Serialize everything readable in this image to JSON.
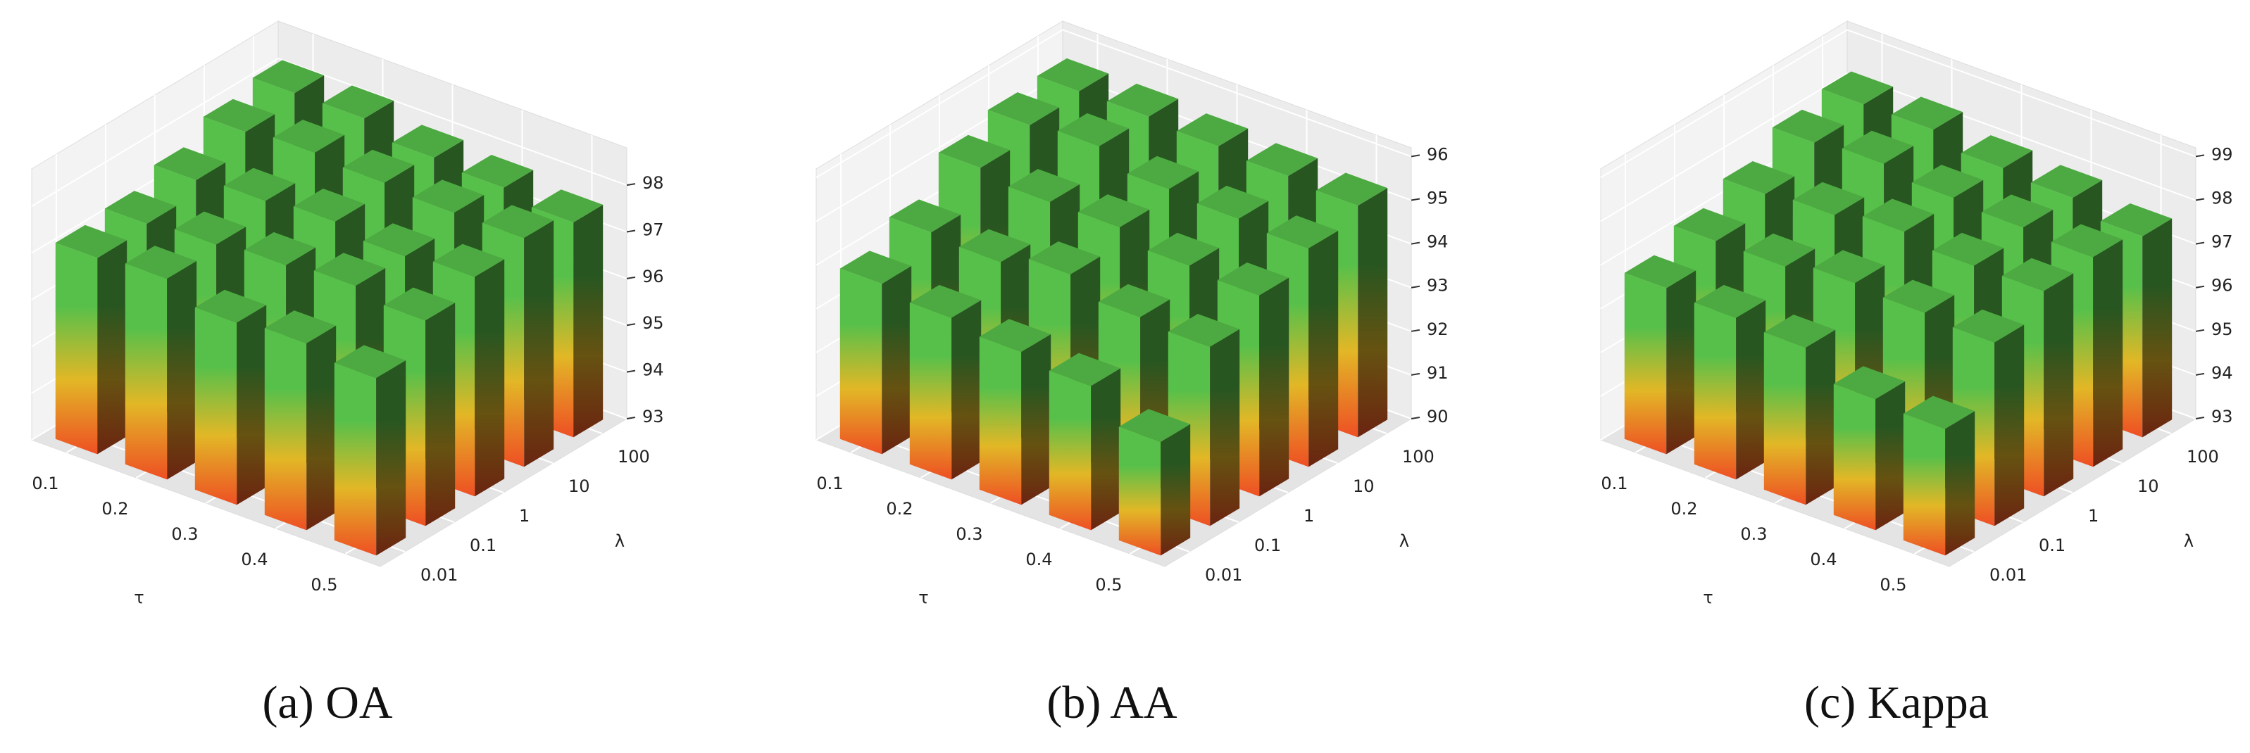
{
  "chart_data": [
    {
      "type": "bar3d",
      "title": "(a) OA",
      "xlabel": "τ",
      "ylabel": "λ",
      "x": [
        "0.1",
        "0.2",
        "0.3",
        "0.4",
        "0.5"
      ],
      "y": [
        "0.01",
        "0.1",
        "1",
        "10",
        "100"
      ],
      "values": [
        [
          97.2,
          97.3,
          97.6,
          98.0,
          98.2
        ],
        [
          97.3,
          97.4,
          97.7,
          98.1,
          98.2
        ],
        [
          96.9,
          97.5,
          97.8,
          98.0,
          97.9
        ],
        [
          97.0,
          97.6,
          97.6,
          97.9,
          97.8
        ],
        [
          96.8,
          97.4,
          97.7,
          97.9,
          97.6
        ]
      ],
      "zlim": [
        93,
        98.8
      ],
      "zticks": [
        93,
        94,
        95,
        96,
        97,
        98
      ],
      "bar_colors": [
        "#ee4f24",
        "#e2b726",
        "#57c04a"
      ],
      "grid": true
    },
    {
      "type": "bar3d",
      "title": "(b) AA",
      "xlabel": "τ",
      "ylabel": "λ",
      "x": [
        "0.1",
        "0.2",
        "0.3",
        "0.4",
        "0.5"
      ],
      "y": [
        "0.01",
        "0.1",
        "1",
        "10",
        "100"
      ],
      "values": [
        [
          93.9,
          94.4,
          95.2,
          95.5,
          95.6
        ],
        [
          93.7,
          94.3,
          95.0,
          95.6,
          95.6
        ],
        [
          93.5,
          94.6,
          95.0,
          95.2,
          95.5
        ],
        [
          93.3,
          94.2,
          94.7,
          95.1,
          95.4
        ],
        [
          92.6,
          94.1,
          94.6,
          95.0,
          95.3
        ]
      ],
      "zlim": [
        90,
        96.2
      ],
      "zticks": [
        90,
        91,
        92,
        93,
        94,
        95,
        96
      ],
      "bar_colors": [
        "#ee4f24",
        "#e2b726",
        "#57c04a"
      ],
      "grid": true
    },
    {
      "type": "bar3d",
      "title": "(c) Kappa",
      "xlabel": "τ",
      "ylabel": "λ",
      "x": [
        "0.1",
        "0.2",
        "0.3",
        "0.4",
        "0.5"
      ],
      "y": [
        "0.01",
        "0.1",
        "1",
        "10",
        "100"
      ],
      "values": [
        [
          96.8,
          97.2,
          97.6,
          98.1,
          98.3
        ],
        [
          96.7,
          97.2,
          97.7,
          98.2,
          98.3
        ],
        [
          96.6,
          97.4,
          97.9,
          98.0,
          98.0
        ],
        [
          96.0,
          97.3,
          97.7,
          97.9,
          97.9
        ],
        [
          95.9,
          97.2,
          97.7,
          97.8,
          97.6
        ]
      ],
      "zlim": [
        93,
        99.2
      ],
      "zticks": [
        93,
        94,
        95,
        96,
        97,
        98,
        99
      ],
      "bar_colors": [
        "#ee4f24",
        "#e2b726",
        "#57c04a"
      ],
      "grid": true
    }
  ]
}
